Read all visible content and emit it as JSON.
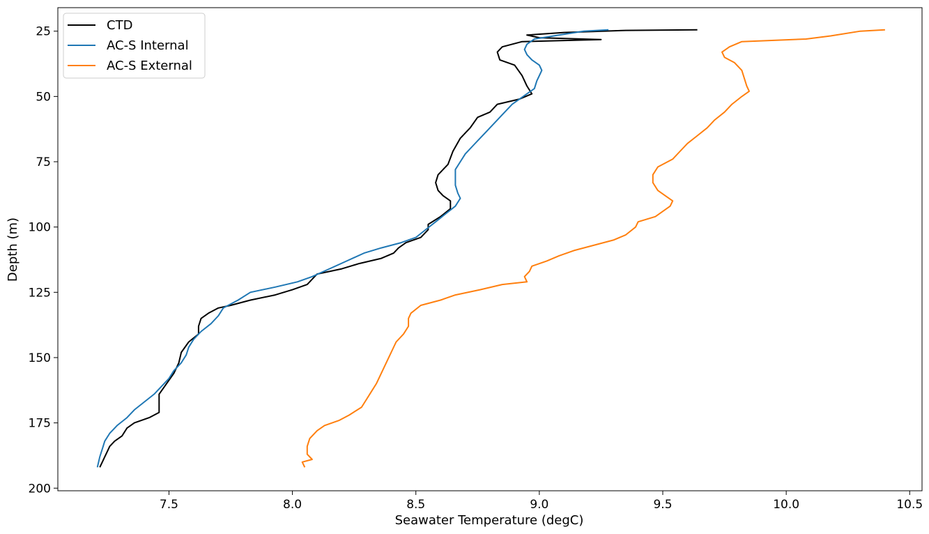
{
  "chart_data": {
    "type": "line",
    "title": "",
    "xlabel": "Seawater Temperature (degC)",
    "ylabel": "Depth (m)",
    "xlim": [
      7.05,
      10.55
    ],
    "ylim": [
      201,
      16
    ],
    "y_inverted": true,
    "xticks": [
      7.5,
      8.0,
      8.5,
      9.0,
      9.5,
      10.0,
      10.5
    ],
    "xtick_labels": [
      "7.5",
      "8.0",
      "8.5",
      "9.0",
      "9.5",
      "10.0",
      "10.5"
    ],
    "yticks": [
      25,
      50,
      75,
      100,
      125,
      150,
      175,
      200
    ],
    "ytick_labels": [
      "25",
      "50",
      "75",
      "100",
      "125",
      "150",
      "175",
      "200"
    ],
    "grid": false,
    "legend_position": "top-left",
    "series": [
      {
        "name": "CTD",
        "color": "#000000",
        "points": [
          [
            9.64,
            24.5
          ],
          [
            9.35,
            24.7
          ],
          [
            9.1,
            25.5
          ],
          [
            8.95,
            26.5
          ],
          [
            9.0,
            27.5
          ],
          [
            9.25,
            28.2
          ],
          [
            8.93,
            29
          ],
          [
            8.85,
            31
          ],
          [
            8.83,
            33
          ],
          [
            8.84,
            36
          ],
          [
            8.9,
            38
          ],
          [
            8.93,
            42
          ],
          [
            8.95,
            46
          ],
          [
            8.97,
            49
          ],
          [
            8.92,
            51
          ],
          [
            8.83,
            53
          ],
          [
            8.8,
            56
          ],
          [
            8.75,
            58
          ],
          [
            8.72,
            62
          ],
          [
            8.68,
            66
          ],
          [
            8.65,
            71
          ],
          [
            8.63,
            76
          ],
          [
            8.59,
            80
          ],
          [
            8.58,
            83
          ],
          [
            8.59,
            86
          ],
          [
            8.61,
            88
          ],
          [
            8.64,
            90
          ],
          [
            8.64,
            93
          ],
          [
            8.6,
            96
          ],
          [
            8.55,
            99
          ],
          [
            8.55,
            101
          ],
          [
            8.52,
            104
          ],
          [
            8.46,
            106
          ],
          [
            8.43,
            108
          ],
          [
            8.41,
            110
          ],
          [
            8.36,
            112
          ],
          [
            8.27,
            114
          ],
          [
            8.2,
            116
          ],
          [
            8.1,
            118
          ],
          [
            8.08,
            120
          ],
          [
            8.06,
            122
          ],
          [
            8.0,
            124
          ],
          [
            7.93,
            126
          ],
          [
            7.83,
            128
          ],
          [
            7.75,
            130
          ],
          [
            7.7,
            131
          ],
          [
            7.66,
            133
          ],
          [
            7.63,
            135
          ],
          [
            7.62,
            138
          ],
          [
            7.62,
            141
          ],
          [
            7.58,
            144
          ],
          [
            7.55,
            148
          ],
          [
            7.54,
            152
          ],
          [
            7.52,
            156
          ],
          [
            7.49,
            160
          ],
          [
            7.46,
            164
          ],
          [
            7.46,
            168
          ],
          [
            7.46,
            171
          ],
          [
            7.42,
            173
          ],
          [
            7.36,
            175
          ],
          [
            7.33,
            177
          ],
          [
            7.31,
            180
          ],
          [
            7.28,
            182
          ],
          [
            7.26,
            184
          ],
          [
            7.25,
            186
          ],
          [
            7.24,
            188
          ],
          [
            7.23,
            190
          ],
          [
            7.22,
            192
          ]
        ]
      },
      {
        "name": "AC-S Internal",
        "color": "#1f77b4",
        "points": [
          [
            9.28,
            24.5
          ],
          [
            9.18,
            25
          ],
          [
            9.08,
            26.5
          ],
          [
            8.98,
            28
          ],
          [
            8.95,
            30
          ],
          [
            8.94,
            32
          ],
          [
            8.95,
            34
          ],
          [
            8.97,
            36
          ],
          [
            9.0,
            38
          ],
          [
            9.01,
            40
          ],
          [
            9.0,
            42
          ],
          [
            8.99,
            44
          ],
          [
            8.98,
            47
          ],
          [
            8.95,
            49
          ],
          [
            8.92,
            51
          ],
          [
            8.89,
            53
          ],
          [
            8.87,
            55
          ],
          [
            8.85,
            57
          ],
          [
            8.82,
            60
          ],
          [
            8.79,
            63
          ],
          [
            8.76,
            66
          ],
          [
            8.73,
            69
          ],
          [
            8.7,
            72
          ],
          [
            8.68,
            75
          ],
          [
            8.66,
            78
          ],
          [
            8.66,
            81
          ],
          [
            8.66,
            84
          ],
          [
            8.67,
            87
          ],
          [
            8.68,
            89
          ],
          [
            8.66,
            92
          ],
          [
            8.62,
            95
          ],
          [
            8.58,
            98
          ],
          [
            8.54,
            101
          ],
          [
            8.5,
            104
          ],
          [
            8.44,
            106
          ],
          [
            8.36,
            108
          ],
          [
            8.29,
            110
          ],
          [
            8.22,
            113
          ],
          [
            8.15,
            116
          ],
          [
            8.08,
            119
          ],
          [
            8.02,
            121
          ],
          [
            7.93,
            123
          ],
          [
            7.83,
            125
          ],
          [
            7.78,
            128
          ],
          [
            7.72,
            131
          ],
          [
            7.7,
            134
          ],
          [
            7.67,
            137
          ],
          [
            7.63,
            140
          ],
          [
            7.6,
            143
          ],
          [
            7.58,
            146
          ],
          [
            7.57,
            149
          ],
          [
            7.55,
            152
          ],
          [
            7.52,
            155
          ],
          [
            7.5,
            158
          ],
          [
            7.47,
            161
          ],
          [
            7.44,
            164
          ],
          [
            7.4,
            167
          ],
          [
            7.36,
            170
          ],
          [
            7.33,
            173
          ],
          [
            7.29,
            176
          ],
          [
            7.26,
            179
          ],
          [
            7.24,
            182
          ],
          [
            7.23,
            185
          ],
          [
            7.22,
            188
          ],
          [
            7.21,
            192
          ]
        ]
      },
      {
        "name": "AC-S External",
        "color": "#ff7f0e",
        "points": [
          [
            10.4,
            24.5
          ],
          [
            10.3,
            25
          ],
          [
            10.18,
            26.8
          ],
          [
            10.08,
            28
          ],
          [
            9.82,
            29
          ],
          [
            9.77,
            31
          ],
          [
            9.74,
            33
          ],
          [
            9.75,
            35
          ],
          [
            9.79,
            37
          ],
          [
            9.82,
            40
          ],
          [
            9.83,
            43
          ],
          [
            9.84,
            46
          ],
          [
            9.85,
            48
          ],
          [
            9.82,
            50
          ],
          [
            9.78,
            53
          ],
          [
            9.75,
            56
          ],
          [
            9.71,
            59
          ],
          [
            9.68,
            62
          ],
          [
            9.64,
            65
          ],
          [
            9.6,
            68
          ],
          [
            9.57,
            71
          ],
          [
            9.54,
            74
          ],
          [
            9.48,
            77
          ],
          [
            9.46,
            80
          ],
          [
            9.46,
            83
          ],
          [
            9.48,
            86
          ],
          [
            9.51,
            88
          ],
          [
            9.54,
            90
          ],
          [
            9.53,
            92
          ],
          [
            9.5,
            94
          ],
          [
            9.47,
            96
          ],
          [
            9.4,
            98
          ],
          [
            9.39,
            100
          ],
          [
            9.35,
            103
          ],
          [
            9.3,
            105
          ],
          [
            9.22,
            107
          ],
          [
            9.14,
            109
          ],
          [
            9.08,
            111
          ],
          [
            9.03,
            113
          ],
          [
            8.97,
            115
          ],
          [
            8.96,
            117
          ],
          [
            8.94,
            119
          ],
          [
            8.95,
            121
          ],
          [
            8.85,
            122
          ],
          [
            8.76,
            124
          ],
          [
            8.66,
            126
          ],
          [
            8.6,
            128
          ],
          [
            8.52,
            130
          ],
          [
            8.48,
            133
          ],
          [
            8.47,
            135
          ],
          [
            8.47,
            138
          ],
          [
            8.45,
            141
          ],
          [
            8.42,
            144
          ],
          [
            8.4,
            148
          ],
          [
            8.38,
            152
          ],
          [
            8.36,
            156
          ],
          [
            8.34,
            160
          ],
          [
            8.32,
            163
          ],
          [
            8.3,
            166
          ],
          [
            8.28,
            169
          ],
          [
            8.23,
            172
          ],
          [
            8.19,
            174
          ],
          [
            8.13,
            176
          ],
          [
            8.1,
            178
          ],
          [
            8.07,
            181
          ],
          [
            8.06,
            184
          ],
          [
            8.06,
            187
          ],
          [
            8.08,
            189
          ],
          [
            8.04,
            190
          ],
          [
            8.05,
            192
          ]
        ]
      }
    ]
  }
}
